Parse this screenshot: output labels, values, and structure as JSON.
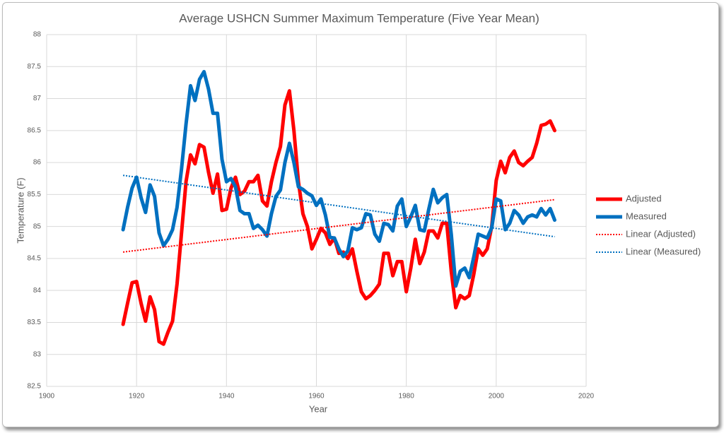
{
  "chart_data": {
    "type": "line",
    "title": "Average USHCN Summer Maximum Temperature (Five Year Mean)",
    "x_label": "Year",
    "y_label": "Temperature (F)",
    "x": [
      1917,
      1918,
      1919,
      1920,
      1921,
      1922,
      1923,
      1924,
      1925,
      1926,
      1927,
      1928,
      1929,
      1930,
      1931,
      1932,
      1933,
      1934,
      1935,
      1936,
      1937,
      1938,
      1939,
      1940,
      1941,
      1942,
      1943,
      1944,
      1945,
      1946,
      1947,
      1948,
      1949,
      1950,
      1951,
      1952,
      1953,
      1954,
      1955,
      1956,
      1957,
      1958,
      1959,
      1960,
      1961,
      1962,
      1963,
      1964,
      1965,
      1966,
      1967,
      1968,
      1969,
      1970,
      1971,
      1972,
      1973,
      1974,
      1975,
      1976,
      1977,
      1978,
      1979,
      1980,
      1981,
      1982,
      1983,
      1984,
      1985,
      1986,
      1987,
      1988,
      1989,
      1990,
      1991,
      1992,
      1993,
      1994,
      1995,
      1996,
      1997,
      1998,
      1999,
      2000,
      2001,
      2002,
      2003,
      2004,
      2005,
      2006,
      2007,
      2008,
      2009,
      2010,
      2011,
      2012,
      2013
    ],
    "series": [
      {
        "name": "Adjusted",
        "color": "#ff0000",
        "width": 5,
        "dash": "solid",
        "values": [
          83.47,
          83.8,
          84.12,
          84.14,
          83.8,
          83.52,
          83.9,
          83.7,
          83.2,
          83.16,
          83.35,
          83.52,
          84.1,
          84.9,
          85.7,
          86.12,
          85.98,
          86.28,
          86.24,
          85.85,
          85.52,
          85.82,
          85.25,
          85.27,
          85.6,
          85.77,
          85.5,
          85.55,
          85.7,
          85.7,
          85.8,
          85.4,
          85.32,
          85.7,
          86.0,
          86.25,
          86.9,
          87.12,
          86.5,
          85.7,
          85.2,
          85.0,
          84.65,
          84.8,
          84.97,
          84.9,
          84.72,
          84.82,
          84.58,
          84.6,
          84.5,
          84.65,
          84.3,
          83.98,
          83.87,
          83.92,
          84.0,
          84.1,
          84.58,
          84.58,
          84.23,
          84.45,
          84.45,
          83.98,
          84.35,
          84.8,
          84.42,
          84.6,
          84.93,
          84.93,
          84.82,
          85.05,
          85.05,
          84.3,
          83.73,
          83.92,
          83.87,
          83.92,
          84.25,
          84.65,
          84.55,
          84.65,
          85.0,
          85.72,
          86.02,
          85.84,
          86.08,
          86.18,
          86.0,
          85.95,
          86.02,
          86.08,
          86.3,
          86.58,
          86.6,
          86.65,
          86.5
        ]
      },
      {
        "name": "Measured",
        "color": "#0070c0",
        "width": 5,
        "dash": "solid",
        "values": [
          84.95,
          85.3,
          85.6,
          85.77,
          85.45,
          85.22,
          85.65,
          85.47,
          84.9,
          84.7,
          84.8,
          84.95,
          85.3,
          85.9,
          86.6,
          87.2,
          86.97,
          87.3,
          87.42,
          87.15,
          86.77,
          86.77,
          86.05,
          85.7,
          85.75,
          85.62,
          85.25,
          85.2,
          85.2,
          84.97,
          85.02,
          84.95,
          84.85,
          85.2,
          85.47,
          85.57,
          86.0,
          86.3,
          86.0,
          85.62,
          85.58,
          85.52,
          85.48,
          85.33,
          85.43,
          85.18,
          84.83,
          84.82,
          84.65,
          84.53,
          84.62,
          84.98,
          84.95,
          84.98,
          85.2,
          85.18,
          84.88,
          84.77,
          85.05,
          85.03,
          84.93,
          85.32,
          85.43,
          85.0,
          85.15,
          85.33,
          84.95,
          84.93,
          85.27,
          85.58,
          85.37,
          85.45,
          85.5,
          84.88,
          84.07,
          84.3,
          84.35,
          84.2,
          84.52,
          84.88,
          84.85,
          84.82,
          84.98,
          85.43,
          85.4,
          84.95,
          85.05,
          85.25,
          85.18,
          85.05,
          85.15,
          85.18,
          85.15,
          85.28,
          85.18,
          85.28,
          85.1
        ]
      },
      {
        "name": "Linear (Adjusted)",
        "color": "#ff0000",
        "width": 2,
        "dash": "dotted",
        "x": [
          1917,
          2013
        ],
        "values": [
          84.6,
          85.42
        ]
      },
      {
        "name": "Linear (Measured)",
        "color": "#0070c0",
        "width": 2,
        "dash": "dotted",
        "x": [
          1917,
          2013
        ],
        "values": [
          85.8,
          84.84
        ]
      }
    ],
    "xlim": [
      1900,
      2020
    ],
    "xticks": [
      1900,
      1920,
      1940,
      1960,
      1980,
      2000,
      2020
    ],
    "ylim": [
      82.5,
      88
    ],
    "yticks": [
      82.5,
      83,
      83.5,
      84,
      84.5,
      85,
      85.5,
      86,
      86.5,
      87,
      87.5,
      88
    ],
    "grid": true,
    "legend": "right"
  }
}
